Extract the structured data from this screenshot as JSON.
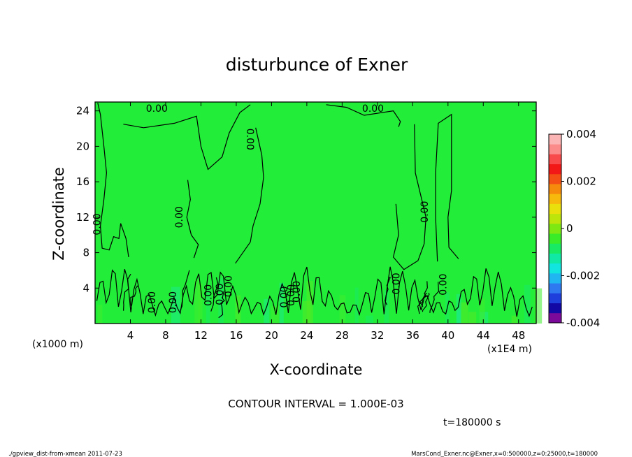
{
  "chart_data": {
    "type": "heatmap",
    "title": "disturbunce of Exner",
    "xlabel": "X-coordinate",
    "ylabel": "Z-coordinate",
    "x_unit": "(x1E4 m)",
    "y_unit": "(x1000 m)",
    "xlim": [
      0,
      50
    ],
    "ylim": [
      0,
      25
    ],
    "x_ticks": [
      4,
      8,
      12,
      16,
      20,
      24,
      28,
      32,
      36,
      40,
      44,
      48
    ],
    "y_ticks": [
      4,
      8,
      12,
      16,
      20,
      24
    ],
    "contour_interval_text": "CONTOUR INTERVAL = 1.000E-03",
    "contour_labels": [
      "0.00",
      "0.00",
      "0.00",
      "0.00",
      "0.00",
      "0.00",
      "0.00",
      "0.00",
      "0.00",
      "0.00",
      "0.00",
      "0.00",
      "0.00",
      "0.00",
      "0.00",
      "0.00"
    ],
    "time_text": "t=180000 s",
    "colorbar": {
      "min": -0.004,
      "max": 0.004,
      "tick_labels": [
        "0.004",
        "0.002",
        "0",
        "-0.002",
        "-0.004"
      ],
      "tick_values": [
        0.004,
        0.002,
        0,
        -0.002,
        -0.004
      ],
      "colors": [
        "#7b0a9a",
        "#1208a6",
        "#1f3fdc",
        "#2f79f0",
        "#1fb6f2",
        "#12e4df",
        "#10e9a6",
        "#18ea64",
        "#39ec27",
        "#7ee812",
        "#bde50c",
        "#eae10c",
        "#f7b90c",
        "#f68a0c",
        "#f44f14",
        "#f21818",
        "#f84a4a",
        "#fb8a8a",
        "#fcb5b5"
      ]
    },
    "field_color": "#22ee3a"
  },
  "footer": {
    "left": "./gpview_dist-from-xmean  2011-07-23",
    "right": "MarsCond_Exner.nc@Exner,x=0:500000,z=0:25000,t=180000"
  }
}
